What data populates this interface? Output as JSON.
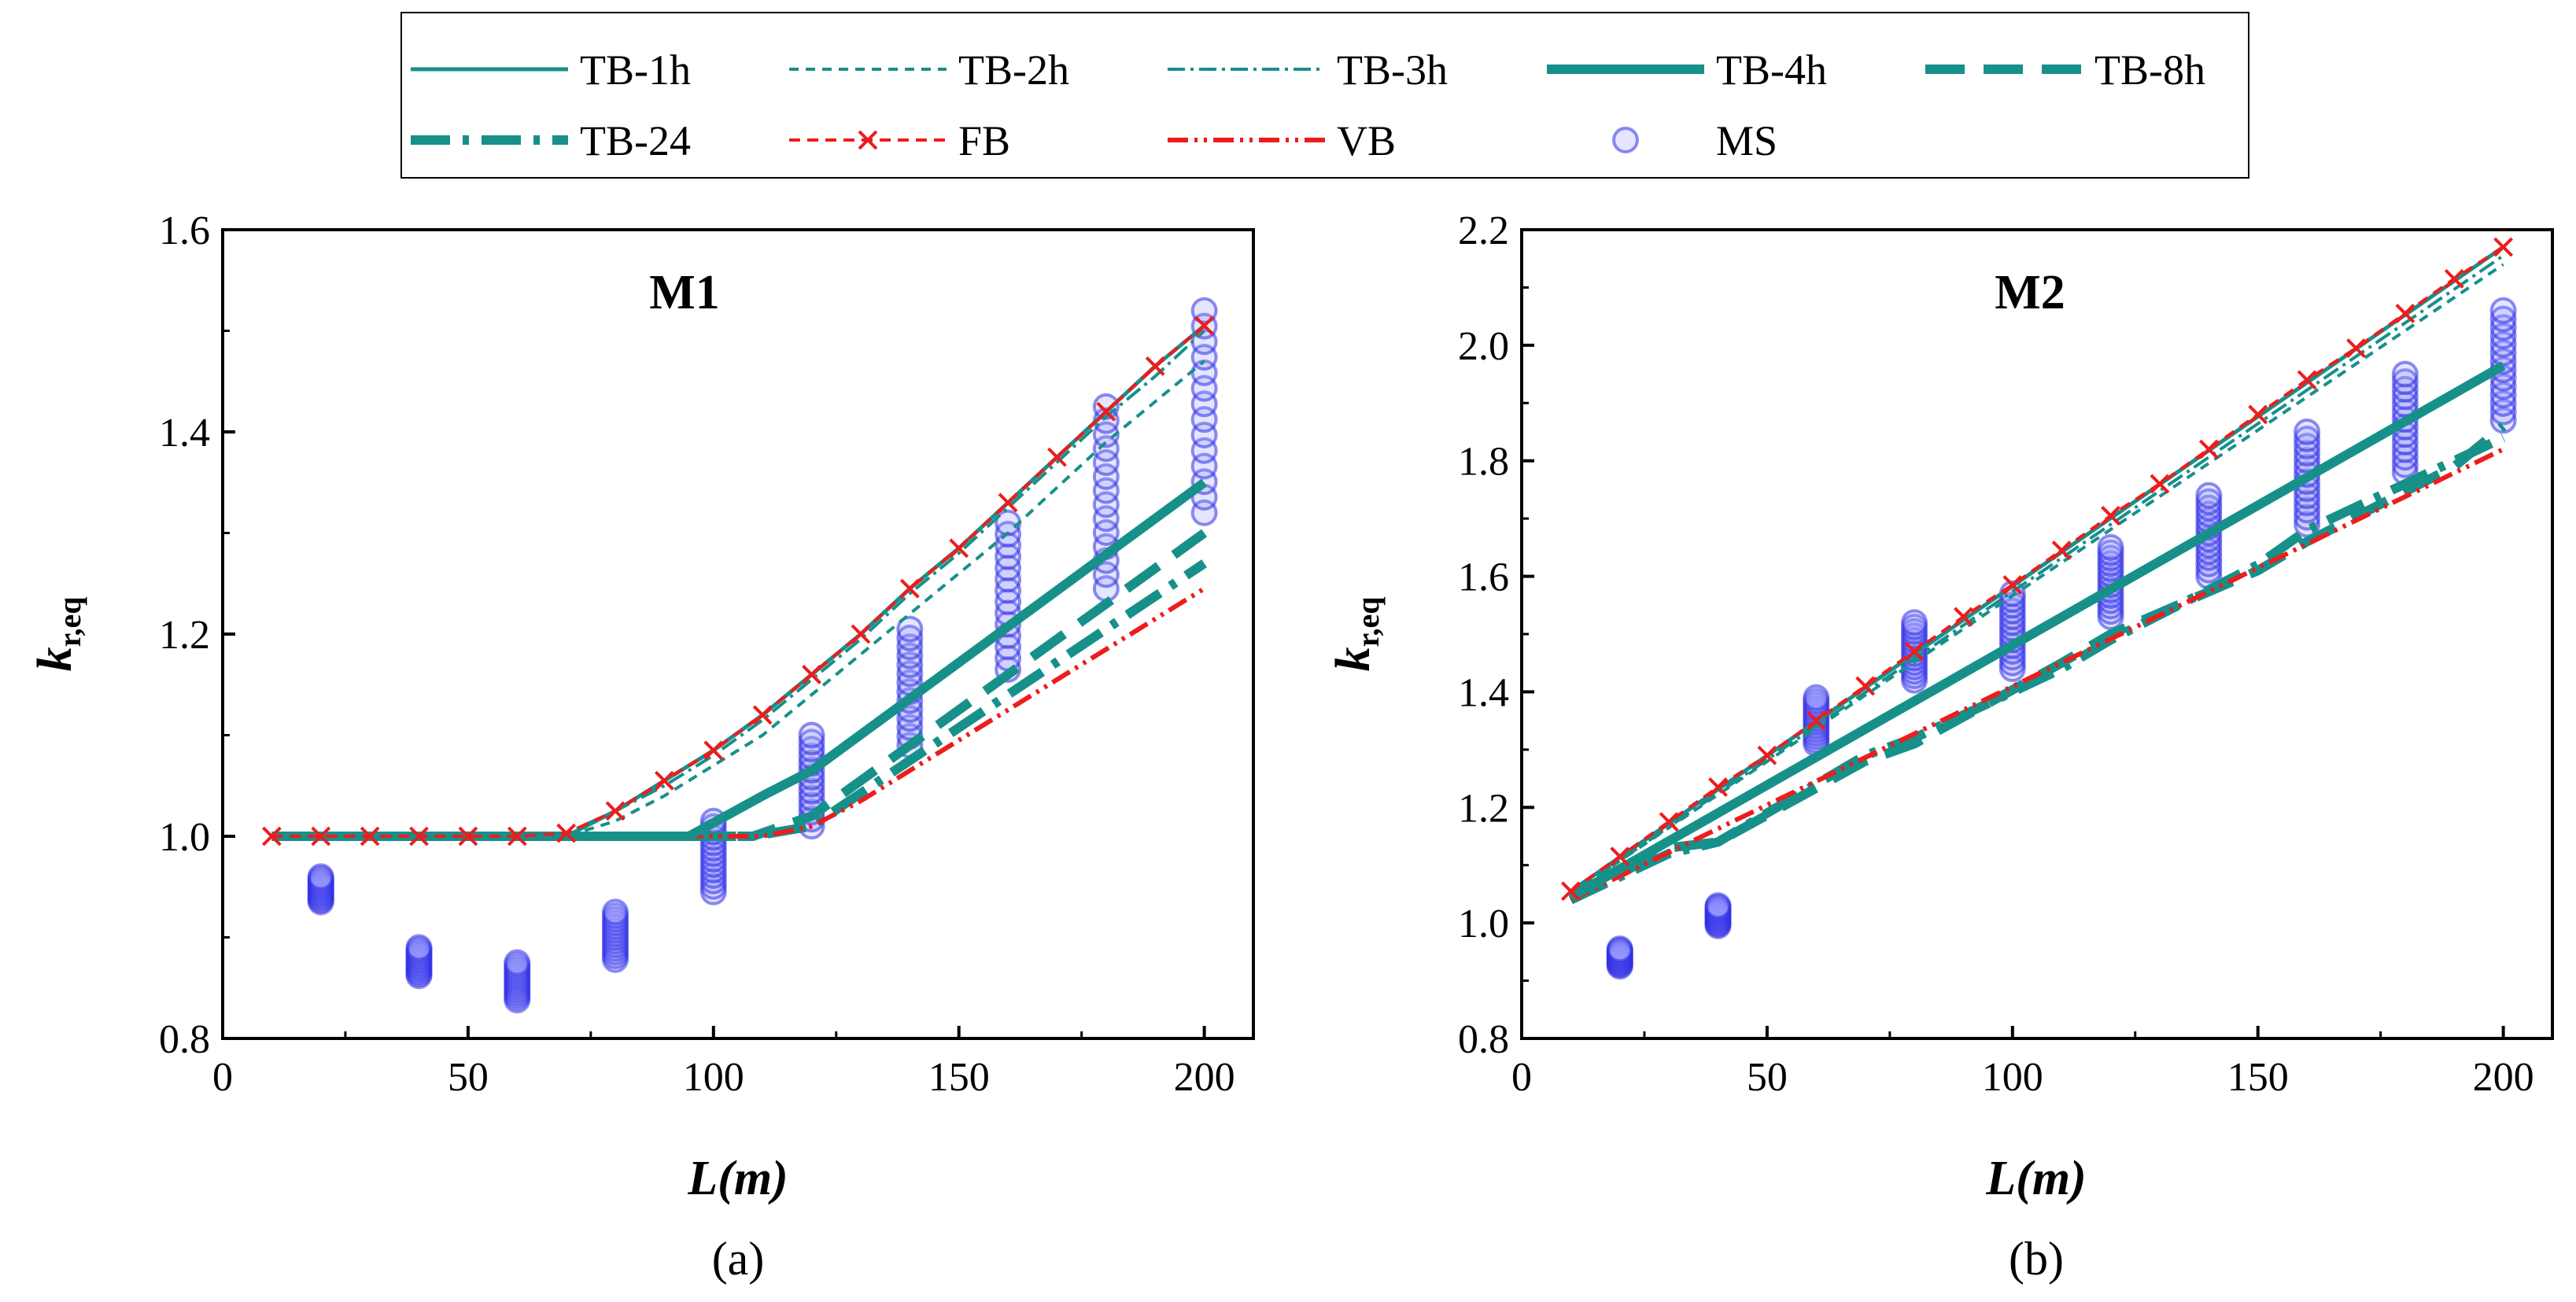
{
  "colors": {
    "teal": "#17908a",
    "red": "#ee1c1c",
    "ms_stroke": "#3030e6",
    "ms_fill": "rgba(150,150,255,0.25)"
  },
  "legend": [
    {
      "key": "TB-1h",
      "label": "TB-1h"
    },
    {
      "key": "TB-2h",
      "label": "TB-2h"
    },
    {
      "key": "TB-3h",
      "label": "TB-3h"
    },
    {
      "key": "TB-4h",
      "label": "TB-4h"
    },
    {
      "key": "TB-8h",
      "label": "TB-8h"
    },
    {
      "key": "TB-24",
      "label": "TB-24"
    },
    {
      "key": "FB",
      "label": "FB"
    },
    {
      "key": "VB",
      "label": "VB"
    },
    {
      "key": "MS",
      "label": "MS"
    }
  ],
  "chart_data": [
    {
      "type": "line",
      "panel": "a",
      "title": "M1",
      "caption": "(a)",
      "xlabel": "L(m)",
      "ylabel": "k r,eq",
      "xlim": [
        0,
        210
      ],
      "ylim": [
        0.8,
        1.6
      ],
      "xticks": [
        0,
        50,
        100,
        150,
        200
      ],
      "yticks": [
        0.8,
        1.0,
        1.2,
        1.4,
        1.6
      ],
      "grid": false,
      "series": [
        {
          "name": "TB-1h",
          "x": [
            10,
            60,
            70,
            80,
            90,
            100,
            110,
            120,
            130,
            140,
            150,
            160,
            170,
            180,
            190,
            200
          ],
          "y": [
            1.0,
            1.0,
            1.0,
            1.025,
            1.055,
            1.085,
            1.12,
            1.16,
            1.2,
            1.245,
            1.285,
            1.33,
            1.375,
            1.42,
            1.465,
            1.505
          ]
        },
        {
          "name": "TB-2h",
          "x": [
            10,
            70,
            80,
            90,
            100,
            110,
            120,
            130,
            140,
            150,
            160,
            170,
            180,
            190,
            200
          ],
          "y": [
            1.0,
            1.0,
            1.015,
            1.04,
            1.07,
            1.1,
            1.14,
            1.18,
            1.22,
            1.26,
            1.3,
            1.345,
            1.39,
            1.43,
            1.47
          ]
        },
        {
          "name": "TB-3h",
          "x": [
            10,
            60,
            70,
            80,
            90,
            100,
            110,
            120,
            130,
            140,
            150,
            160,
            170,
            180,
            190,
            200
          ],
          "y": [
            1.0,
            1.0,
            1.003,
            1.025,
            1.05,
            1.08,
            1.115,
            1.155,
            1.195,
            1.24,
            1.28,
            1.325,
            1.37,
            1.415,
            1.455,
            1.5
          ]
        },
        {
          "name": "TB-4h",
          "x": [
            10,
            95,
            110,
            120,
            200
          ],
          "y": [
            1.0,
            1.0,
            1.04,
            1.065,
            1.35
          ]
        },
        {
          "name": "TB-8h",
          "x": [
            10,
            108,
            120,
            200
          ],
          "y": [
            1.0,
            1.0,
            1.02,
            1.3
          ]
        },
        {
          "name": "TB-24",
          "x": [
            10,
            108,
            120,
            200
          ],
          "y": [
            1.0,
            1.0,
            1.01,
            1.27
          ]
        },
        {
          "name": "FB",
          "x": [
            10,
            20,
            30,
            40,
            50,
            60,
            70,
            80,
            90,
            100,
            110,
            120,
            130,
            140,
            150,
            160,
            170,
            180,
            190,
            200
          ],
          "y": [
            1.0,
            1.0,
            1.0,
            1.0,
            1.0,
            1.0,
            1.003,
            1.025,
            1.055,
            1.085,
            1.12,
            1.16,
            1.2,
            1.245,
            1.285,
            1.33,
            1.375,
            1.42,
            1.465,
            1.505
          ]
        },
        {
          "name": "VB",
          "x": [
            10,
            110,
            120,
            130,
            140,
            150,
            160,
            170,
            180,
            190,
            200
          ],
          "y": [
            1.0,
            1.0,
            1.01,
            1.035,
            1.065,
            1.095,
            1.125,
            1.155,
            1.185,
            1.215,
            1.245
          ]
        },
        {
          "name": "MS",
          "x": [
            20,
            40,
            60,
            80,
            100,
            120,
            140,
            160,
            180,
            200
          ],
          "y": [
            [
              0.935,
              0.96
            ],
            [
              0.862,
              0.89
            ],
            [
              0.838,
              0.875
            ],
            [
              0.878,
              0.925
            ],
            [
              0.945,
              1.015
            ],
            [
              1.01,
              1.1
            ],
            [
              1.09,
              1.205
            ],
            [
              1.165,
              1.31
            ],
            [
              1.245,
              1.425
            ],
            [
              1.32,
              1.52
            ]
          ]
        }
      ]
    },
    {
      "type": "line",
      "panel": "b",
      "title": "M2",
      "caption": "(b)",
      "xlabel": "L(m)",
      "ylabel": "k r,eq",
      "xlim": [
        0,
        210
      ],
      "ylim": [
        0.8,
        2.2
      ],
      "xticks": [
        0,
        50,
        100,
        150,
        200
      ],
      "yticks": [
        0.8,
        1.0,
        1.2,
        1.4,
        1.6,
        1.8,
        2.0,
        2.2
      ],
      "grid": false,
      "series": [
        {
          "name": "TB-1h",
          "x": [
            10,
            200
          ],
          "y": [
            1.055,
            2.17
          ]
        },
        {
          "name": "TB-2h",
          "x": [
            10,
            200
          ],
          "y": [
            1.05,
            2.14
          ]
        },
        {
          "name": "TB-3h",
          "x": [
            10,
            200
          ],
          "y": [
            1.05,
            2.155
          ]
        },
        {
          "name": "TB-4h",
          "x": [
            10,
            200
          ],
          "y": [
            1.045,
            1.965
          ]
        },
        {
          "name": "TB-8h",
          "x": [
            10,
            30,
            40,
            70,
            80,
            110,
            120,
            150,
            160,
            190,
            200
          ],
          "y": [
            1.04,
            1.13,
            1.14,
            1.28,
            1.31,
            1.45,
            1.5,
            1.61,
            1.66,
            1.79,
            1.86
          ]
        },
        {
          "name": "TB-24",
          "x": [
            10,
            30,
            40,
            70,
            80,
            110,
            120,
            150,
            160,
            190,
            200
          ],
          "y": [
            1.04,
            1.12,
            1.14,
            1.29,
            1.32,
            1.44,
            1.49,
            1.62,
            1.68,
            1.8,
            1.84
          ]
        },
        {
          "name": "FB",
          "x": [
            10,
            20,
            30,
            40,
            50,
            60,
            70,
            80,
            90,
            100,
            110,
            120,
            130,
            140,
            150,
            160,
            170,
            180,
            190,
            200
          ],
          "y": [
            1.055,
            1.115,
            1.175,
            1.235,
            1.29,
            1.35,
            1.41,
            1.47,
            1.53,
            1.585,
            1.645,
            1.705,
            1.76,
            1.82,
            1.88,
            1.94,
            1.995,
            2.055,
            2.115,
            2.17
          ]
        },
        {
          "name": "VB",
          "x": [
            10,
            200
          ],
          "y": [
            1.04,
            1.82
          ]
        },
        {
          "name": "MS",
          "x": [
            20,
            40,
            60,
            80,
            100,
            120,
            140,
            160,
            180,
            200
          ],
          "y": [
            [
              0.925,
              0.955
            ],
            [
              0.995,
              1.03
            ],
            [
              1.31,
              1.39
            ],
            [
              1.42,
              1.52
            ],
            [
              1.44,
              1.57
            ],
            [
              1.53,
              1.65
            ],
            [
              1.6,
              1.74
            ],
            [
              1.69,
              1.85
            ],
            [
              1.78,
              1.95
            ],
            [
              1.87,
              2.06
            ]
          ]
        }
      ]
    }
  ]
}
